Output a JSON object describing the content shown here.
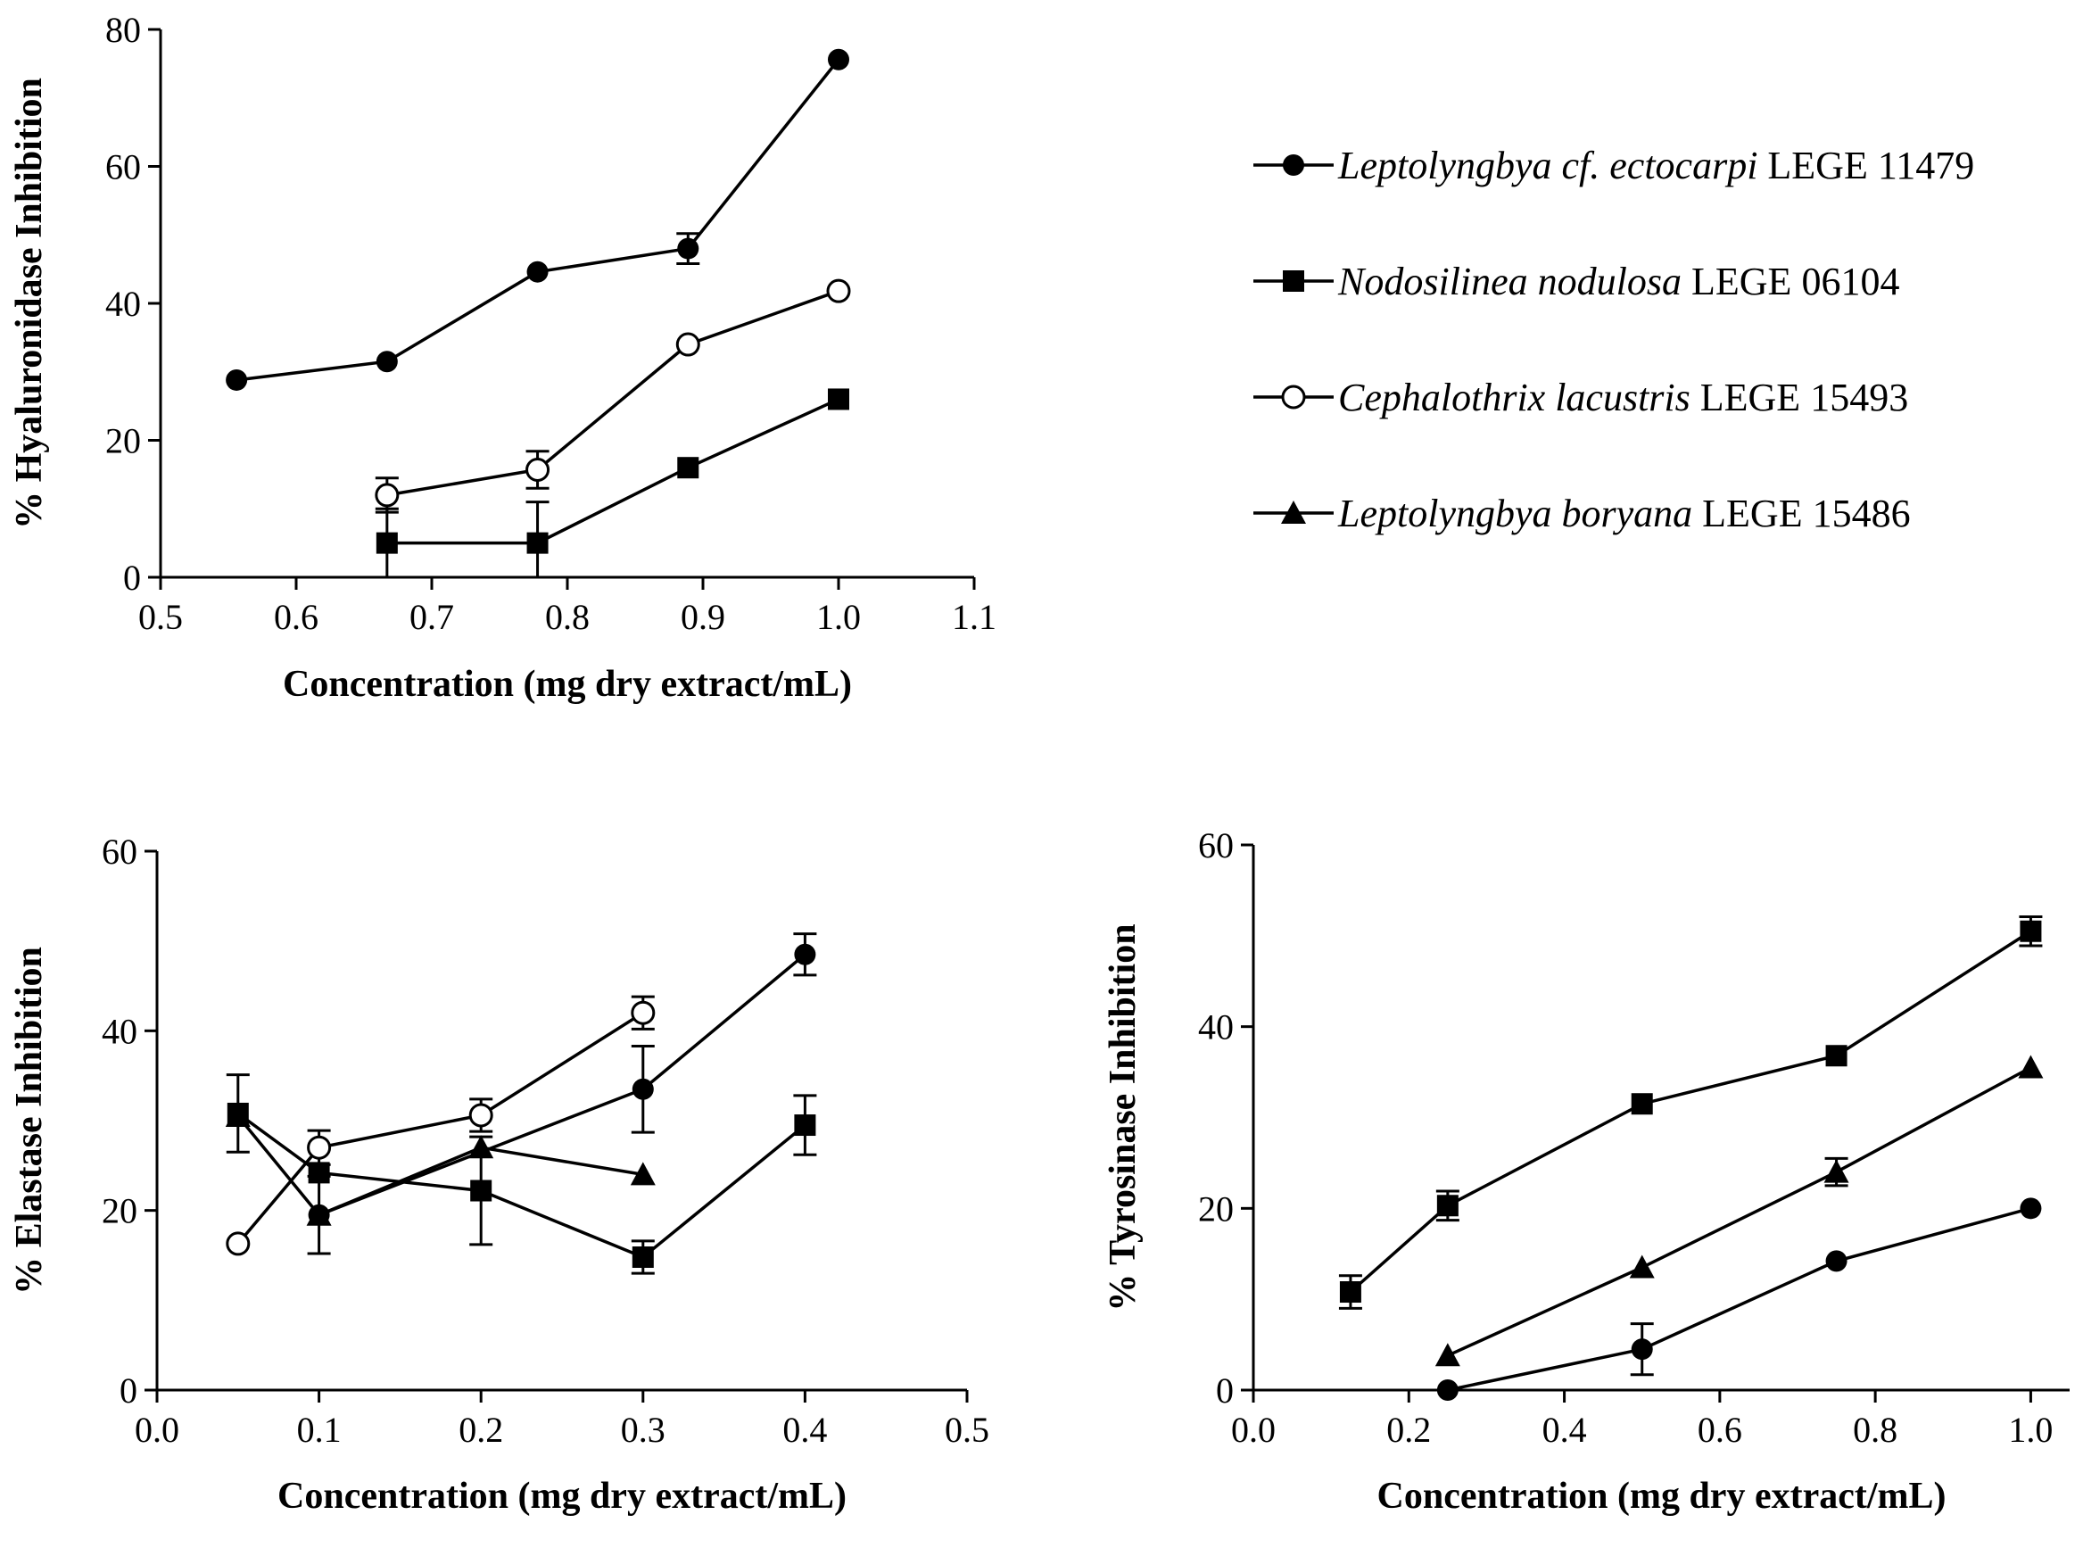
{
  "legend": {
    "items": [
      {
        "italic": "Leptolyngbya cf. ectocarpi",
        "plain": "LEGE 11479",
        "marker": "filled-circle"
      },
      {
        "italic": "Nodosilinea nodulosa",
        "plain": "LEGE 06104",
        "marker": "filled-square"
      },
      {
        "italic": "Cephalothrix lacustris",
        "plain": "LEGE 15493",
        "marker": "open-circle"
      },
      {
        "italic": "Leptolyngbya boryana",
        "plain": "LEGE 15486",
        "marker": "filled-triangle"
      }
    ]
  },
  "chart_data": [
    {
      "type": "line",
      "id": "hyaluronidase",
      "title": "",
      "xlabel": "Concentration (mg dry extract/mL)",
      "ylabel": "% Hyaluronidase Inhibition",
      "xlim": [
        0.5,
        1.1
      ],
      "ylim": [
        0,
        80
      ],
      "xticks": [
        0.5,
        0.6,
        0.7,
        0.8,
        0.9,
        1.0,
        1.1
      ],
      "xtick_labels": [
        "0.5",
        "0.6",
        "0.7",
        "0.8",
        "0.9",
        "1.0",
        "1.1"
      ],
      "yticks": [
        0,
        20,
        40,
        60,
        80
      ],
      "ytick_labels": [
        "0",
        "20",
        "40",
        "60",
        "80"
      ],
      "series": [
        {
          "name": "Leptolyngbya cf. ectocarpi LEGE 11479",
          "marker": "filled-circle",
          "x": [
            0.556,
            0.667,
            0.778,
            0.889,
            1.0
          ],
          "y": [
            28.8,
            31.5,
            44.6,
            48.0,
            75.6
          ],
          "err": [
            0,
            0,
            0,
            2.2,
            0
          ]
        },
        {
          "name": "Nodosilinea nodulosa LEGE 06104",
          "marker": "filled-square",
          "x": [
            0.667,
            0.778,
            0.889,
            1.0
          ],
          "y": [
            5.0,
            5.0,
            16.0,
            26.0
          ],
          "err": [
            5.0,
            6.0,
            0,
            0
          ]
        },
        {
          "name": "Cephalothrix lacustris LEGE 15493",
          "marker": "open-circle",
          "x": [
            0.667,
            0.778,
            0.889,
            1.0
          ],
          "y": [
            12.0,
            15.7,
            34.0,
            41.8
          ],
          "err": [
            2.5,
            2.7,
            0,
            0
          ]
        }
      ]
    },
    {
      "type": "line",
      "id": "elastase",
      "title": "",
      "xlabel": "Concentration (mg dry extract/mL)",
      "ylabel": "% Elastase Inhibition",
      "xlim": [
        0.0,
        0.5
      ],
      "ylim": [
        0,
        60
      ],
      "xticks": [
        0.0,
        0.1,
        0.2,
        0.3,
        0.4,
        0.5
      ],
      "xtick_labels": [
        "0.0",
        "0.1",
        "0.2",
        "0.3",
        "0.4",
        "0.5"
      ],
      "yticks": [
        0,
        20,
        40,
        60
      ],
      "ytick_labels": [
        "0",
        "20",
        "40",
        "60"
      ],
      "series": [
        {
          "name": "Leptolyngbya cf. ectocarpi LEGE 11479",
          "marker": "filled-circle",
          "x": [
            0.1,
            0.3,
            0.4
          ],
          "y": [
            19.5,
            33.5,
            48.5
          ],
          "err": [
            0,
            4.8,
            2.3
          ]
        },
        {
          "name": "Nodosilinea nodulosa LEGE 06104",
          "marker": "filled-square",
          "x": [
            0.05,
            0.1,
            0.2,
            0.3,
            0.4
          ],
          "y": [
            30.8,
            24.2,
            22.2,
            14.8,
            29.5
          ],
          "err": [
            4.3,
            0,
            6.0,
            1.8,
            3.3
          ]
        },
        {
          "name": "Cephalothrix lacustris LEGE 15493",
          "marker": "open-circle",
          "x": [
            0.05,
            0.1,
            0.2,
            0.3
          ],
          "y": [
            16.3,
            27.0,
            30.6,
            42.0
          ],
          "err": [
            0,
            1.9,
            1.8,
            1.8
          ]
        },
        {
          "name": "Leptolyngbya boryana LEGE 15486",
          "marker": "filled-triangle",
          "x": [
            0.05,
            0.1,
            0.2,
            0.3
          ],
          "y": [
            30.5,
            19.5,
            27.0,
            24.0
          ],
          "err": [
            0,
            4.3,
            0,
            0
          ]
        }
      ]
    },
    {
      "type": "line",
      "id": "tyrosinase",
      "title": "",
      "xlabel": "Concentration (mg dry extract/mL)",
      "ylabel": "% Tyrosinase Inhibition",
      "xlim": [
        0.0,
        1.05
      ],
      "ylim": [
        0,
        60
      ],
      "xticks": [
        0.0,
        0.2,
        0.4,
        0.6,
        0.8,
        1.0
      ],
      "xtick_labels": [
        "0.0",
        "0.2",
        "0.4",
        "0.6",
        "0.8",
        "1.0"
      ],
      "yticks": [
        0,
        20,
        40,
        60
      ],
      "ytick_labels": [
        "0",
        "20",
        "40",
        "60"
      ],
      "series": [
        {
          "name": "Leptolyngbya cf. ectocarpi LEGE 11479",
          "marker": "filled-circle",
          "x": [
            0.25,
            0.5,
            0.75,
            1.0
          ],
          "y": [
            0.0,
            4.5,
            14.2,
            20.0
          ],
          "err": [
            0,
            2.8,
            0,
            0
          ]
        },
        {
          "name": "Nodosilinea nodulosa LEGE 06104",
          "marker": "filled-square",
          "x": [
            0.125,
            0.25,
            0.5,
            0.75,
            1.0
          ],
          "y": [
            10.8,
            20.3,
            31.5,
            36.8,
            50.5
          ],
          "err": [
            1.8,
            1.6,
            0,
            0,
            1.6
          ]
        },
        {
          "name": "Leptolyngbya boryana LEGE 15486",
          "marker": "filled-triangle",
          "x": [
            0.25,
            0.5,
            0.75,
            1.0
          ],
          "y": [
            3.8,
            13.5,
            24.0,
            35.5
          ],
          "err": [
            0,
            0,
            1.5,
            0
          ]
        }
      ]
    }
  ]
}
